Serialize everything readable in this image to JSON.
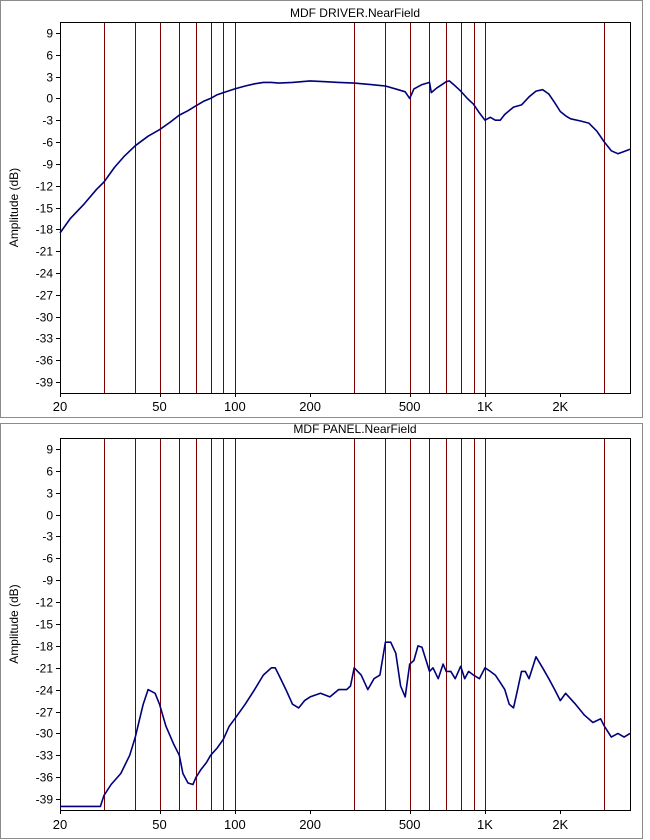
{
  "chart_data": [
    {
      "type": "line",
      "title": "MDF DRIVER.NearField",
      "ylabel": "Amplitude (dB)",
      "xlabel": "",
      "xscale": "log",
      "xlim": [
        20,
        3800
      ],
      "ylim": [
        -40.5,
        10.5
      ],
      "yticks": [
        9,
        6,
        3,
        0,
        -3,
        -6,
        -9,
        -12,
        -15,
        -18,
        -21,
        -24,
        -27,
        -30,
        -33,
        -36,
        -39
      ],
      "xticklabels": [
        {
          "value": 20,
          "label": "20"
        },
        {
          "value": 50,
          "label": "50"
        },
        {
          "value": 100,
          "label": "100"
        },
        {
          "value": 200,
          "label": "200"
        },
        {
          "value": 500,
          "label": "500"
        },
        {
          "value": 1000,
          "label": "1K"
        },
        {
          "value": 2000,
          "label": "2K"
        }
      ],
      "vgrid": [
        30,
        40,
        50,
        60,
        70,
        80,
        90,
        100,
        300,
        400,
        500,
        600,
        700,
        800,
        900,
        1000,
        3000
      ],
      "grid": true,
      "series": [
        {
          "color": "#00007a",
          "x": [
            20,
            22,
            25,
            28,
            30,
            33,
            36,
            40,
            45,
            50,
            55,
            60,
            65,
            70,
            75,
            80,
            85,
            90,
            100,
            110,
            120,
            130,
            140,
            150,
            170,
            200,
            230,
            260,
            300,
            350,
            400,
            450,
            480,
            500,
            520,
            560,
            600,
            610,
            640,
            680,
            700,
            720,
            750,
            800,
            850,
            900,
            950,
            1000,
            1050,
            1100,
            1150,
            1200,
            1300,
            1400,
            1500,
            1600,
            1700,
            1800,
            1900,
            2000,
            2100,
            2200,
            2400,
            2600,
            2800,
            3000,
            3200,
            3400,
            3600,
            3800
          ],
          "y": [
            -18.5,
            -16.5,
            -14.5,
            -12.5,
            -11.5,
            -9.5,
            -8.0,
            -6.5,
            -5.2,
            -4.3,
            -3.3,
            -2.3,
            -1.7,
            -1.0,
            -0.4,
            0.0,
            0.5,
            0.8,
            1.3,
            1.7,
            2.0,
            2.2,
            2.2,
            2.1,
            2.2,
            2.4,
            2.3,
            2.2,
            2.1,
            1.9,
            1.7,
            1.2,
            0.9,
            0.0,
            1.3,
            1.9,
            2.2,
            0.8,
            1.4,
            2.0,
            2.3,
            2.4,
            1.9,
            1.0,
            0.0,
            -0.8,
            -2.0,
            -3.0,
            -2.6,
            -3.0,
            -3.0,
            -2.2,
            -1.2,
            -0.9,
            0.2,
            1.0,
            1.2,
            0.6,
            -0.6,
            -1.8,
            -2.4,
            -2.8,
            -3.1,
            -3.4,
            -4.5,
            -6.0,
            -7.2,
            -7.6,
            -7.3,
            -7.0
          ]
        }
      ]
    },
    {
      "type": "line",
      "title": "MDF PANEL.NearField",
      "ylabel": "Amplitude (dB)",
      "xlabel": "",
      "xscale": "log",
      "xlim": [
        20,
        3800
      ],
      "ylim": [
        -40.5,
        10.5
      ],
      "yticks": [
        9,
        6,
        3,
        0,
        -3,
        -6,
        -9,
        -12,
        -15,
        -18,
        -21,
        -24,
        -27,
        -30,
        -33,
        -36,
        -39
      ],
      "xticklabels": [
        {
          "value": 20,
          "label": "20"
        },
        {
          "value": 50,
          "label": "50"
        },
        {
          "value": 100,
          "label": "100"
        },
        {
          "value": 200,
          "label": "200"
        },
        {
          "value": 500,
          "label": "500"
        },
        {
          "value": 1000,
          "label": "1K"
        },
        {
          "value": 2000,
          "label": "2K"
        }
      ],
      "vgrid": [
        30,
        40,
        50,
        60,
        70,
        80,
        90,
        100,
        300,
        400,
        500,
        600,
        700,
        800,
        900,
        1000,
        3000
      ],
      "grid": true,
      "series": [
        {
          "color": "#00007a",
          "x": [
            20,
            25,
            29,
            30,
            32,
            35,
            38,
            40,
            43,
            45,
            48,
            50,
            53,
            57,
            60,
            62,
            65,
            68,
            70,
            73,
            77,
            80,
            85,
            90,
            95,
            100,
            110,
            120,
            130,
            140,
            145,
            150,
            160,
            170,
            180,
            190,
            200,
            220,
            240,
            260,
            280,
            290,
            300,
            320,
            340,
            360,
            380,
            400,
            420,
            440,
            460,
            480,
            500,
            520,
            540,
            560,
            600,
            620,
            650,
            680,
            700,
            730,
            760,
            800,
            830,
            860,
            900,
            950,
            1000,
            1050,
            1100,
            1150,
            1200,
            1250,
            1300,
            1350,
            1400,
            1450,
            1500,
            1600,
            1700,
            1800,
            1900,
            2000,
            2100,
            2300,
            2500,
            2700,
            2900,
            3000,
            3200,
            3400,
            3600,
            3800
          ],
          "y": [
            -40,
            -40,
            -40,
            -38.5,
            -37.0,
            -35.5,
            -33.0,
            -30.5,
            -26.0,
            -24.0,
            -24.5,
            -26.0,
            -29.0,
            -31.5,
            -33.0,
            -35.5,
            -36.8,
            -37.0,
            -36.0,
            -35.0,
            -34.0,
            -33.0,
            -32.0,
            -30.8,
            -29.0,
            -28.0,
            -26.0,
            -24.0,
            -22.0,
            -21.0,
            -21.0,
            -22.0,
            -24.0,
            -26.0,
            -26.5,
            -25.5,
            -25.0,
            -24.5,
            -25.0,
            -24.0,
            -24.0,
            -23.5,
            -21.0,
            -22.0,
            -24.0,
            -22.5,
            -22.0,
            -17.5,
            -17.5,
            -19.0,
            -23.5,
            -25.0,
            -20.5,
            -20.0,
            -18.0,
            -18.2,
            -21.5,
            -21.0,
            -22.5,
            -20.5,
            -21.5,
            -21.5,
            -22.5,
            -20.8,
            -22.5,
            -21.5,
            -22.0,
            -22.5,
            -21.0,
            -21.5,
            -22.0,
            -23.0,
            -24.0,
            -26.0,
            -26.5,
            -24.0,
            -21.5,
            -21.5,
            -22.5,
            -19.5,
            -21.0,
            -22.5,
            -24.0,
            -25.5,
            -24.5,
            -26.0,
            -27.5,
            -28.5,
            -28.0,
            -29.0,
            -30.5,
            -30.0,
            -30.5,
            -30.0
          ]
        }
      ]
    }
  ]
}
